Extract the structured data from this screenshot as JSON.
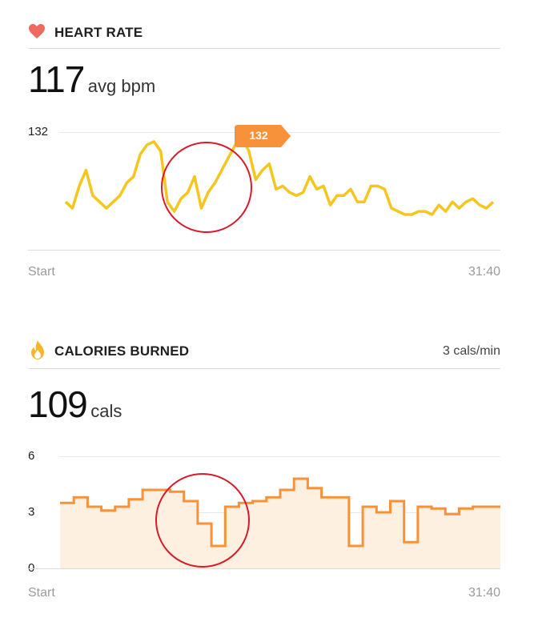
{
  "heart_rate": {
    "title": "HEART RATE",
    "value": "117",
    "unit": "avg bpm",
    "icon": "heart-icon",
    "color": "#f4c61f",
    "tooltip": "132",
    "tooltip_color": "#f7913a",
    "start_label": "Start",
    "end_label": "31:40"
  },
  "calories": {
    "title": "CALORIES BURNED",
    "rate": "3 cals/min",
    "value": "109",
    "unit": "cals",
    "icon": "flame-icon",
    "color": "#f7913a",
    "fill_color": "#fdf0e0",
    "start_label": "Start",
    "end_label": "31:40"
  },
  "annotation_color": "#d81b2a",
  "chart_data": [
    {
      "type": "line",
      "y_tick_labels": [
        "132"
      ],
      "ylim": [
        95,
        138
      ],
      "x_labels": [
        "Start",
        "31:40"
      ],
      "x": [
        0,
        0.5,
        1,
        1.5,
        2,
        2.5,
        3,
        3.5,
        4,
        4.5,
        5,
        5.5,
        6,
        6.5,
        7,
        7.5,
        8,
        8.5,
        9,
        9.5,
        10,
        10.5,
        11,
        11.5,
        12,
        12.5,
        13,
        13.5,
        14,
        14.5,
        15,
        15.5,
        16,
        16.5,
        17,
        17.5,
        18,
        18.5,
        19,
        19.5,
        20,
        20.5,
        21,
        21.5,
        22,
        22.5,
        23,
        23.5,
        24,
        24.5,
        25,
        25.5,
        26,
        26.5,
        27,
        27.5,
        28,
        28.5,
        29,
        29.5,
        30,
        30.5,
        31,
        31.5
      ],
      "values": [
        110,
        108,
        115,
        120,
        112,
        110,
        108,
        110,
        112,
        116,
        118,
        125,
        128,
        129,
        126,
        110,
        107,
        111,
        113,
        118,
        108,
        113,
        116,
        120,
        124,
        128,
        130,
        126,
        117,
        120,
        122,
        114,
        115,
        113,
        112,
        113,
        118,
        114,
        115,
        109,
        112,
        112,
        114,
        110,
        110,
        115,
        115,
        114,
        108,
        107,
        106,
        106,
        107,
        107,
        106,
        109,
        107,
        110,
        108,
        110,
        111,
        109,
        108,
        110
      ],
      "title": "",
      "xlabel": "",
      "ylabel": ""
    },
    {
      "type": "area",
      "y_tick_labels": [
        "6",
        "3",
        "0"
      ],
      "ylim": [
        0,
        6
      ],
      "x_labels": [
        "Start",
        "31:40"
      ],
      "step": true,
      "x": [
        0,
        1,
        2,
        3,
        4,
        5,
        6,
        7,
        8,
        9,
        10,
        11,
        12,
        13,
        14,
        15,
        16,
        17,
        18,
        19,
        20,
        21,
        22,
        23,
        24,
        25,
        26,
        27,
        28,
        29,
        30,
        31
      ],
      "values": [
        3.5,
        3.8,
        3.3,
        3.1,
        3.3,
        3.7,
        4.2,
        4.2,
        4.1,
        3.6,
        2.4,
        1.2,
        3.3,
        3.5,
        3.6,
        3.8,
        4.2,
        4.8,
        4.3,
        3.8,
        3.8,
        1.2,
        3.3,
        3.0,
        3.6,
        1.4,
        3.3,
        3.2,
        2.9,
        3.2,
        3.3,
        3.3
      ],
      "title": "",
      "xlabel": "",
      "ylabel": ""
    }
  ]
}
